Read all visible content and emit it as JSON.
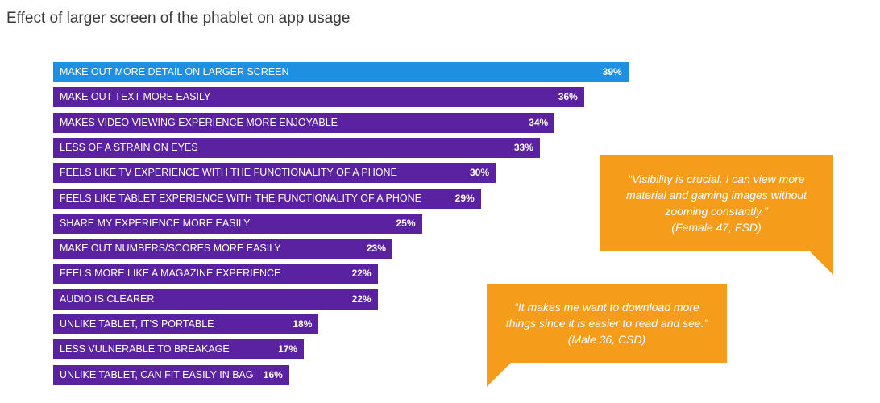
{
  "title": "Effect of larger screen of the phablet on app usage",
  "colors": {
    "highlight_bar": "#1e8fe1",
    "bar": "#5a22a0",
    "callout": "#f59d1b",
    "text_on_bar": "#ffffff",
    "title_text": "#3a3a3a"
  },
  "chart_data": {
    "type": "bar",
    "orientation": "horizontal",
    "title": "Effect of larger screen of the phablet on app usage",
    "xlabel": "",
    "ylabel": "",
    "value_unit": "%",
    "xlim": [
      0,
      50
    ],
    "grid": false,
    "categories": [
      "MAKE OUT MORE DETAIL ON LARGER SCREEN",
      "MAKE OUT TEXT MORE EASILY",
      "MAKES VIDEO VIEWING EXPERIENCE MORE ENJOYABLE",
      "LESS OF A STRAIN ON EYES",
      "FEELS LIKE TV EXPERIENCE WITH THE FUNCTIONALITY OF A PHONE",
      "FEELS LIKE TABLET EXPERIENCE WITH THE FUNCTIONALITY OF A PHONE",
      "SHARE MY EXPERIENCE MORE EASILY",
      "MAKE OUT NUMBERS/SCORES MORE EASILY",
      "FEELS MORE LIKE A MAGAZINE EXPERIENCE",
      "AUDIO IS CLEARER",
      "UNLIKE TABLET, IT’S PORTABLE",
      "LESS VULNERABLE TO BREAKAGE",
      "UNLIKE TABLET, CAN FIT EASILY IN BAG"
    ],
    "values": [
      39,
      36,
      34,
      33,
      30,
      29,
      25,
      23,
      22,
      22,
      18,
      17,
      16
    ],
    "value_labels": [
      "39%",
      "36%",
      "34%",
      "33%",
      "30%",
      "29%",
      "25%",
      "23%",
      "22%",
      "22%",
      "18%",
      "17%",
      "16%"
    ],
    "highlighted_index": 0
  },
  "callouts": [
    {
      "lines": [
        "“Visibility is crucial. I can view more",
        "material and gaming images without",
        "zooming constantly.”",
        "(Female 47, FSD)"
      ]
    },
    {
      "lines": [
        "“It makes me want to download more",
        "things since it is easier to read and see.”",
        "(Male 36, CSD)"
      ]
    }
  ]
}
